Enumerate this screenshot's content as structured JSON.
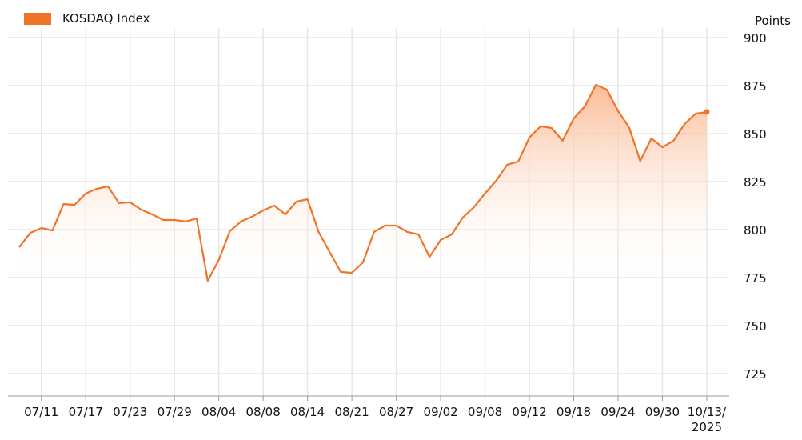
{
  "chart_data": {
    "type": "area",
    "legend": {
      "entries": [
        "KOSDAQ Index"
      ],
      "placement": "top-left"
    },
    "ylabel": "Points",
    "ylim": [
      713,
      905
    ],
    "yticks": [
      725,
      750,
      775,
      800,
      825,
      850,
      875,
      900
    ],
    "y_axis_position": "right",
    "grid": true,
    "xtick_labels": [
      "07/11",
      "07/17",
      "07/23",
      "07/29",
      "08/04",
      "08/08",
      "08/14",
      "08/21",
      "08/27",
      "09/02",
      "09/08",
      "09/12",
      "09/18",
      "09/24",
      "09/30",
      "10/13/\n2025"
    ],
    "series": [
      {
        "name": "KOSDAQ Index",
        "values": [
          790.8,
          798.3,
          800.8,
          799.6,
          813.3,
          812.9,
          818.8,
          821.3,
          822.5,
          813.8,
          814.2,
          810.4,
          807.9,
          805.0,
          805.0,
          804.2,
          805.8,
          773.3,
          784.2,
          799.2,
          804.2,
          806.7,
          810.0,
          812.5,
          807.9,
          814.6,
          815.8,
          798.8,
          788.3,
          777.9,
          777.5,
          782.9,
          798.8,
          802.1,
          802.1,
          798.8,
          797.5,
          785.8,
          794.6,
          797.5,
          806.3,
          811.7,
          818.8,
          825.4,
          833.8,
          835.4,
          847.9,
          853.8,
          852.9,
          846.3,
          857.9,
          864.2,
          875.4,
          872.9,
          861.7,
          853.3,
          835.8,
          847.5,
          842.9,
          846.3,
          855.0,
          860.4,
          861.3
        ]
      }
    ],
    "colors": {
      "line": "#f07428",
      "fill_top": "#fbb48c",
      "grid": "#e6e6e6",
      "axis": "#9a9a9a"
    }
  }
}
